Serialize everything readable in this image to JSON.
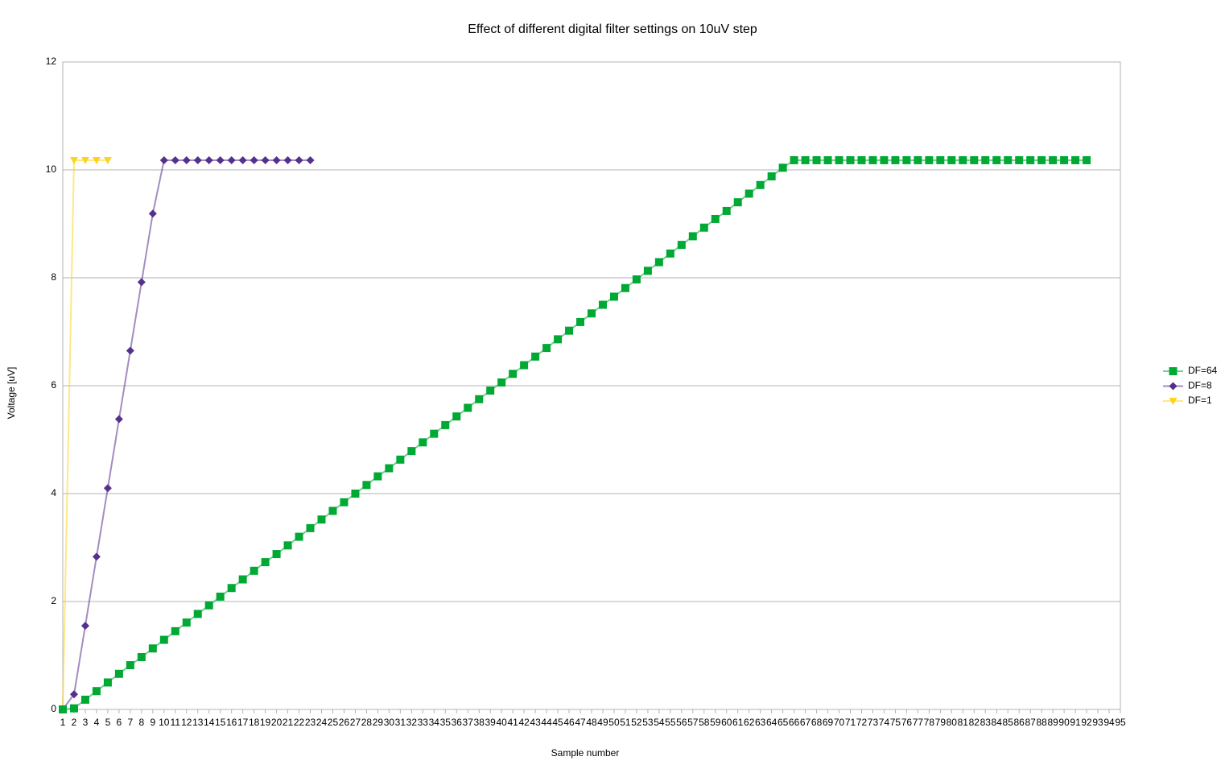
{
  "chart_data": {
    "type": "line",
    "title": "Effect of different digital filter settings on 10uV step",
    "x_label": "Sample number",
    "y_label": "Voltage [uV]",
    "categories": [
      1,
      2,
      3,
      4,
      5,
      6,
      7,
      8,
      9,
      10,
      11,
      12,
      13,
      14,
      15,
      16,
      17,
      18,
      19,
      20,
      21,
      22,
      23,
      24,
      25,
      26,
      27,
      28,
      29,
      30,
      31,
      32,
      33,
      34,
      35,
      36,
      37,
      38,
      39,
      40,
      41,
      42,
      43,
      44,
      45,
      46,
      47,
      48,
      49,
      50,
      51,
      52,
      53,
      54,
      55,
      56,
      57,
      58,
      59,
      60,
      61,
      62,
      63,
      64,
      65,
      66,
      67,
      68,
      69,
      70,
      71,
      72,
      73,
      74,
      75,
      76,
      77,
      78,
      79,
      80,
      81,
      82,
      83,
      84,
      85,
      86,
      87,
      88,
      89,
      90,
      91,
      92,
      93,
      94,
      95
    ],
    "ylim": [
      0,
      12
    ],
    "yticks": [
      0,
      2,
      4,
      6,
      8,
      10,
      12
    ],
    "grid": true,
    "legend": "right",
    "series": [
      {
        "name": "DF=64",
        "color": "#00a933",
        "marker": "square",
        "values": [
          0,
          0.02,
          0.18,
          0.34,
          0.5,
          0.66,
          0.82,
          0.97,
          1.13,
          1.29,
          1.45,
          1.61,
          1.77,
          1.93,
          2.09,
          2.25,
          2.41,
          2.57,
          2.73,
          2.88,
          3.04,
          3.2,
          3.36,
          3.52,
          3.68,
          3.84,
          4.0,
          4.16,
          4.32,
          4.47,
          4.63,
          4.79,
          4.95,
          5.11,
          5.27,
          5.43,
          5.59,
          5.75,
          5.91,
          6.06,
          6.22,
          6.38,
          6.54,
          6.7,
          6.86,
          7.02,
          7.18,
          7.34,
          7.5,
          7.65,
          7.81,
          7.97,
          8.13,
          8.29,
          8.45,
          8.61,
          8.77,
          8.93,
          9.09,
          9.24,
          9.4,
          9.56,
          9.72,
          9.88,
          10.04,
          10.18,
          10.18,
          10.18,
          10.18,
          10.18,
          10.18,
          10.18,
          10.18,
          10.18,
          10.18,
          10.18,
          10.18,
          10.18,
          10.18,
          10.18,
          10.18,
          10.18,
          10.18,
          10.18,
          10.18,
          10.18,
          10.18,
          10.18,
          10.18,
          10.18,
          10.18,
          10.18,
          null,
          null,
          null
        ]
      },
      {
        "name": "DF=8",
        "color": "#55308d",
        "marker": "diamond",
        "values": [
          0,
          0.28,
          1.55,
          2.83,
          4.1,
          5.38,
          6.65,
          7.92,
          9.19,
          10.18,
          10.18,
          10.18,
          10.18,
          10.18,
          10.18,
          10.18,
          10.18,
          10.18,
          10.18,
          10.18,
          10.18,
          10.18,
          10.18,
          null,
          null,
          null,
          null,
          null,
          null,
          null,
          null,
          null,
          null,
          null,
          null,
          null,
          null,
          null,
          null,
          null,
          null,
          null,
          null,
          null,
          null,
          null,
          null,
          null,
          null,
          null,
          null,
          null,
          null,
          null,
          null,
          null,
          null,
          null,
          null,
          null,
          null,
          null,
          null,
          null,
          null,
          null,
          null,
          null,
          null,
          null,
          null,
          null,
          null,
          null,
          null,
          null,
          null,
          null,
          null,
          null,
          null,
          null,
          null,
          null,
          null,
          null,
          null,
          null,
          null,
          null,
          null,
          null,
          null,
          null,
          null
        ]
      },
      {
        "name": "DF=1",
        "color": "#ffd320",
        "marker": "triangle-down",
        "values": [
          0,
          10.18,
          10.18,
          10.18,
          10.18,
          null,
          null,
          null,
          null,
          null,
          null,
          null,
          null,
          null,
          null,
          null,
          null,
          null,
          null,
          null,
          null,
          null,
          null,
          null,
          null,
          null,
          null,
          null,
          null,
          null,
          null,
          null,
          null,
          null,
          null,
          null,
          null,
          null,
          null,
          null,
          null,
          null,
          null,
          null,
          null,
          null,
          null,
          null,
          null,
          null,
          null,
          null,
          null,
          null,
          null,
          null,
          null,
          null,
          null,
          null,
          null,
          null,
          null,
          null,
          null,
          null,
          null,
          null,
          null,
          null,
          null,
          null,
          null,
          null,
          null,
          null,
          null,
          null,
          null,
          null,
          null,
          null,
          null,
          null,
          null,
          null,
          null,
          null,
          null,
          null,
          null,
          null,
          null,
          null,
          null
        ]
      }
    ]
  }
}
